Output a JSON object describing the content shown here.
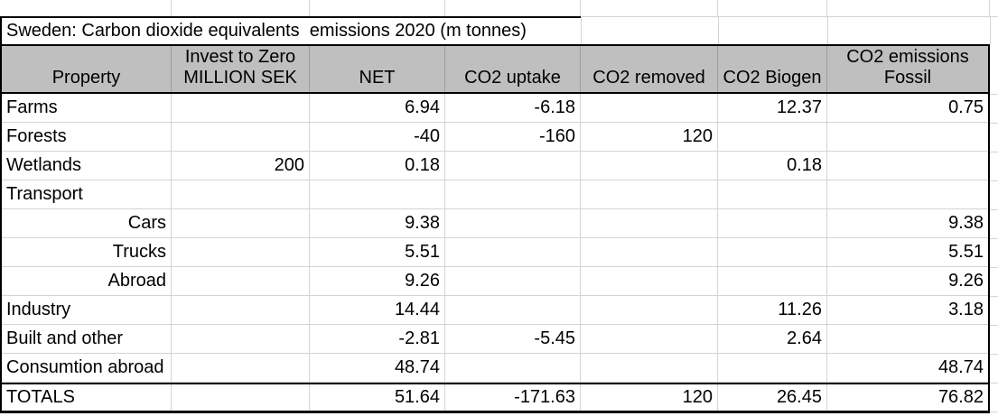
{
  "title": "Sweden: Carbon dioxide equivalents  emissions 2020 (m tonnes)",
  "columns": [
    {
      "key": "property",
      "label": "Property"
    },
    {
      "key": "invest",
      "label": "Invest to Zero\nMILLION SEK"
    },
    {
      "key": "net",
      "label": "NET"
    },
    {
      "key": "uptake",
      "label": "CO2 uptake"
    },
    {
      "key": "removed",
      "label": "CO2 removed"
    },
    {
      "key": "biogen",
      "label": "CO2 Biogen"
    },
    {
      "key": "fossil",
      "label": "CO2 emissions\nFossil"
    }
  ],
  "rows": [
    {
      "property": "Farms",
      "indent": false,
      "invest": "",
      "net": "6.94",
      "uptake": "-6.18",
      "removed": "",
      "biogen": "12.37",
      "fossil": "0.75"
    },
    {
      "property": "Forests",
      "indent": false,
      "invest": "",
      "net": "-40",
      "uptake": "-160",
      "removed": "120",
      "biogen": "",
      "fossil": ""
    },
    {
      "property": "Wetlands",
      "indent": false,
      "invest": "200",
      "net": "0.18",
      "uptake": "",
      "removed": "",
      "biogen": "0.18",
      "fossil": ""
    },
    {
      "property": "Transport",
      "indent": false,
      "invest": "",
      "net": "",
      "uptake": "",
      "removed": "",
      "biogen": "",
      "fossil": ""
    },
    {
      "property": "Cars",
      "indent": true,
      "invest": "",
      "net": "9.38",
      "uptake": "",
      "removed": "",
      "biogen": "",
      "fossil": "9.38"
    },
    {
      "property": "Trucks",
      "indent": true,
      "invest": "",
      "net": "5.51",
      "uptake": "",
      "removed": "",
      "biogen": "",
      "fossil": "5.51"
    },
    {
      "property": "Abroad",
      "indent": true,
      "invest": "",
      "net": "9.26",
      "uptake": "",
      "removed": "",
      "biogen": "",
      "fossil": "9.26"
    },
    {
      "property": "Industry",
      "indent": false,
      "invest": "",
      "net": "14.44",
      "uptake": "",
      "removed": "",
      "biogen": "11.26",
      "fossil": "3.18"
    },
    {
      "property": "Built and other",
      "indent": false,
      "invest": "",
      "net": "-2.81",
      "uptake": "-5.45",
      "removed": "",
      "biogen": "2.64",
      "fossil": ""
    },
    {
      "property": "Consumtion abroad",
      "indent": false,
      "invest": "",
      "net": "48.74",
      "uptake": "",
      "removed": "",
      "biogen": "",
      "fossil": "48.74"
    }
  ],
  "totals": {
    "property": "TOTALS",
    "invest": "",
    "net": "51.64",
    "uptake": "-171.63",
    "removed": "120",
    "biogen": "26.45",
    "fossil": "76.82"
  },
  "colors": {
    "header_bg": "#bfbfbf",
    "gridline": "#d4d4d4",
    "header_gridline": "#9e9e9e",
    "border": "#000000"
  },
  "chart_data": {
    "type": "table",
    "title": "Sweden: Carbon dioxide equivalents  emissions 2020 (m tonnes)",
    "columns": [
      "Property",
      "Invest to Zero MILLION SEK",
      "NET",
      "CO2 uptake",
      "CO2 removed",
      "CO2 Biogen",
      "CO2 emissions Fossil"
    ],
    "rows": [
      [
        "Farms",
        null,
        6.94,
        -6.18,
        null,
        12.37,
        0.75
      ],
      [
        "Forests",
        null,
        -40,
        -160,
        120,
        null,
        null
      ],
      [
        "Wetlands",
        200,
        0.18,
        null,
        null,
        0.18,
        null
      ],
      [
        "Transport",
        null,
        null,
        null,
        null,
        null,
        null
      ],
      [
        "Cars",
        null,
        9.38,
        null,
        null,
        null,
        9.38
      ],
      [
        "Trucks",
        null,
        5.51,
        null,
        null,
        null,
        5.51
      ],
      [
        "Abroad",
        null,
        9.26,
        null,
        null,
        null,
        9.26
      ],
      [
        "Industry",
        null,
        14.44,
        null,
        null,
        11.26,
        3.18
      ],
      [
        "Built and other",
        null,
        -2.81,
        -5.45,
        null,
        2.64,
        null
      ],
      [
        "Consumtion abroad",
        null,
        48.74,
        null,
        null,
        null,
        48.74
      ],
      [
        "TOTALS",
        null,
        51.64,
        -171.63,
        120,
        26.45,
        76.82
      ]
    ]
  }
}
